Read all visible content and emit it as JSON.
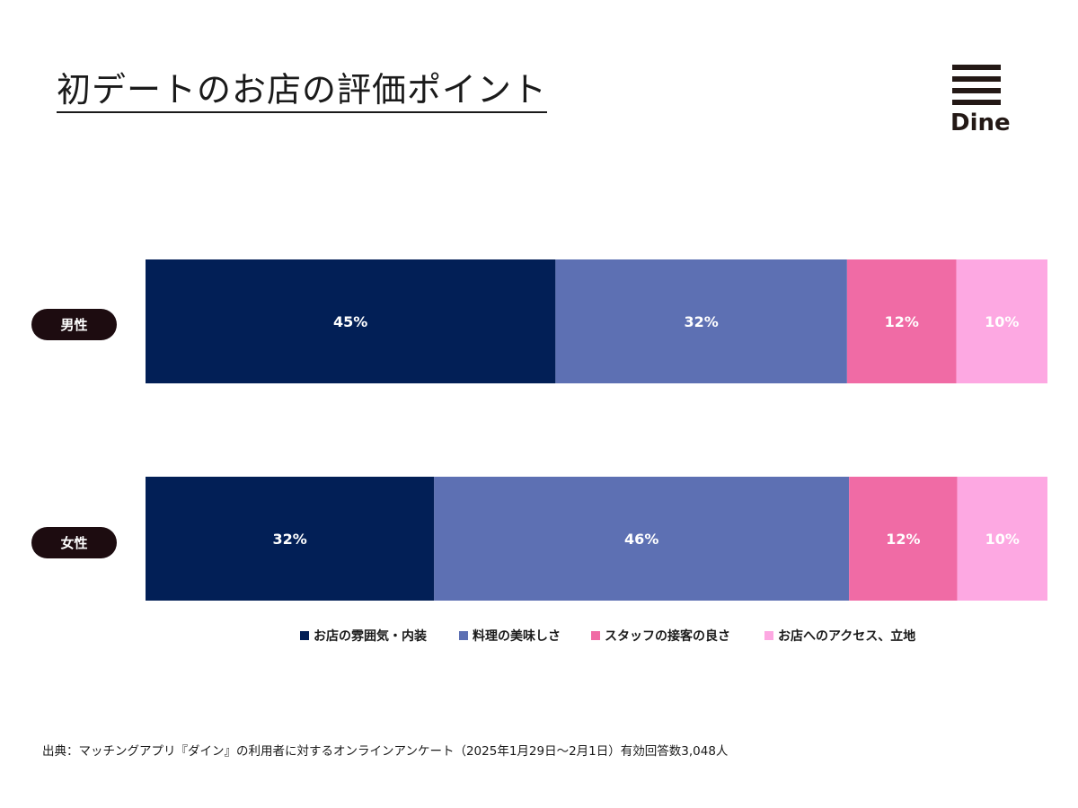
{
  "header": {
    "title": "初デートのお店の評価ポイント",
    "logo_text": "Dine"
  },
  "chart_data": {
    "type": "bar",
    "orientation": "horizontal-stacked-100",
    "categories": [
      "男性",
      "女性"
    ],
    "series": [
      {
        "name": "お店の雰囲気・内装",
        "color": "#021f56",
        "values": [
          45,
          32
        ],
        "labels": [
          "45%",
          "32%"
        ]
      },
      {
        "name": "料理の美味しさ",
        "color": "#5d70b3",
        "values": [
          32,
          46
        ],
        "labels": [
          "32%",
          "46%"
        ]
      },
      {
        "name": "スタッフの接客の良さ",
        "color": "#f06ba5",
        "values": [
          12,
          12
        ],
        "labels": [
          "12%",
          "12%"
        ]
      },
      {
        "name": "お店へのアクセス、立地",
        "color": "#fda8e2",
        "values": [
          10,
          10
        ],
        "labels": [
          "10%",
          "10%"
        ]
      }
    ],
    "legend_position": "bottom"
  },
  "footer": {
    "source": "出典：マッチングアプリ『ダイン』の利用者に対するオンラインアンケート（2025年1月29日〜2月1日）有効回答数3,048人"
  }
}
